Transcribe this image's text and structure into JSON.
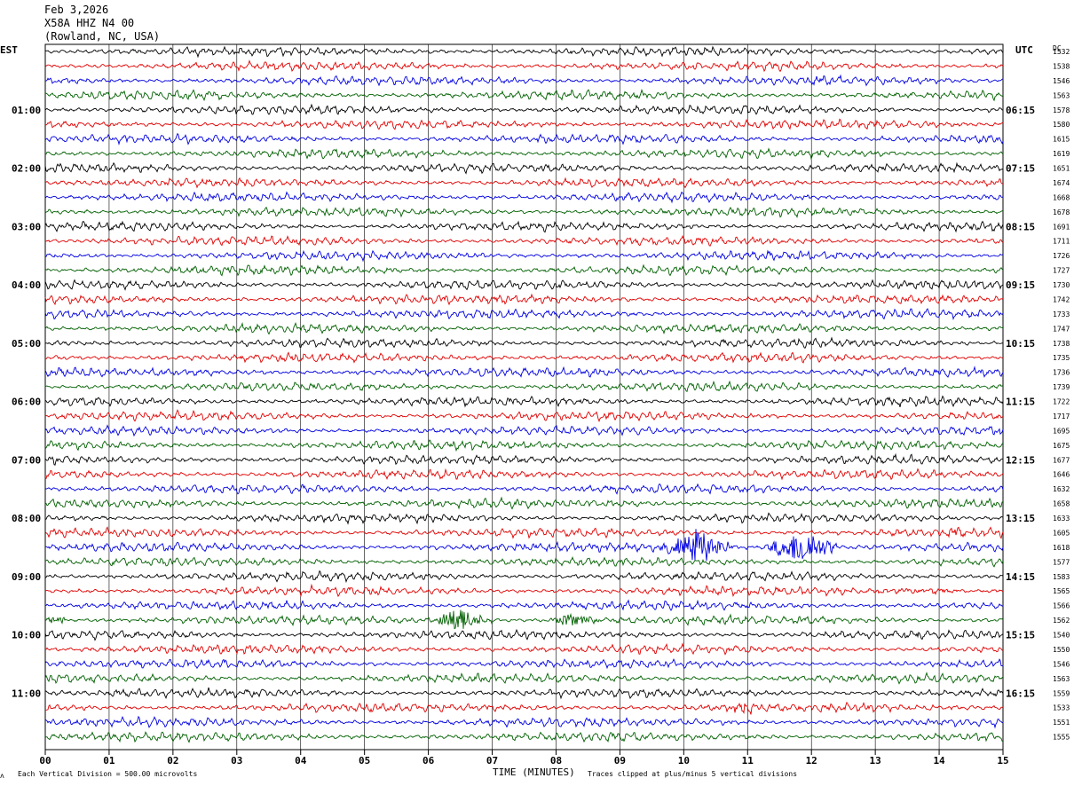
{
  "header": {
    "date": "Feb 3,2026",
    "station": "X58A HHZ N4 00",
    "location": "(Rowland, NC, USA)"
  },
  "left_zone_label": "EST",
  "right_zone_label": "UTC",
  "dc_label": "DC",
  "footer": {
    "vertical_division": "Each Vertical Division =  500.00 microvolts",
    "xlabel": "TIME (MINUTES)",
    "clip_note": "Traces clipped at plus/minus 5 vertical divisions",
    "corner_mark": "ʌ"
  },
  "chart_data": {
    "type": "line",
    "title": "",
    "xlabel": "TIME (MINUTES)",
    "xlim": [
      0,
      15
    ],
    "x_ticks": [
      "00",
      "01",
      "02",
      "03",
      "04",
      "05",
      "06",
      "07",
      "08",
      "09",
      "10",
      "11",
      "12",
      "13",
      "14",
      "15"
    ],
    "trace_colors": [
      "#000000",
      "#e00000",
      "#0000e0",
      "#006000"
    ],
    "est_hour_labels": [
      "01:00",
      "02:00",
      "03:00",
      "04:00",
      "05:00",
      "06:00",
      "07:00",
      "08:00",
      "09:00",
      "10:00",
      "11:00"
    ],
    "utc_hour_labels": [
      "06:15",
      "07:15",
      "08:15",
      "09:15",
      "10:15",
      "11:15",
      "12:15",
      "13:15",
      "14:15",
      "15:15",
      "16:15"
    ],
    "dc_offsets": [
      1532,
      1538,
      1546,
      1563,
      1578,
      1580,
      1615,
      1619,
      1651,
      1674,
      1668,
      1678,
      1691,
      1711,
      1726,
      1727,
      1730,
      1742,
      1733,
      1747,
      1738,
      1735,
      1736,
      1739,
      1722,
      1717,
      1695,
      1675,
      1677,
      1646,
      1632,
      1658,
      1633,
      1605,
      1618,
      1577,
      1583,
      1565,
      1566,
      1562,
      1540,
      1550,
      1546,
      1563,
      1559,
      1533,
      1551,
      1555
    ],
    "events": [
      {
        "trace": 34,
        "start_min": 9.6,
        "end_min": 10.8,
        "peak_min": 10.2,
        "amplitude_div": 5
      },
      {
        "trace": 34,
        "start_min": 11.2,
        "end_min": 12.4,
        "peak_min": 11.9,
        "amplitude_div": 5
      },
      {
        "trace": 33,
        "start_min": 14.1,
        "end_min": 14.4,
        "peak_min": 14.25,
        "amplitude_div": 1.2
      },
      {
        "trace": 39,
        "start_min": 6.1,
        "end_min": 7.0,
        "peak_min": 6.4,
        "amplitude_div": 4
      },
      {
        "trace": 39,
        "start_min": 7.9,
        "end_min": 8.8,
        "peak_min": 8.2,
        "amplitude_div": 2
      },
      {
        "trace": 39,
        "start_min": 0.0,
        "end_min": 0.3,
        "peak_min": 0.1,
        "amplitude_div": 1.5
      },
      {
        "trace": 45,
        "start_min": 10.7,
        "end_min": 11.1,
        "peak_min": 10.9,
        "amplitude_div": 1.3
      },
      {
        "trace": 37,
        "start_min": 12.5,
        "end_min": 14.3,
        "peak_min": 13.9,
        "amplitude_div": 0.6
      }
    ]
  }
}
